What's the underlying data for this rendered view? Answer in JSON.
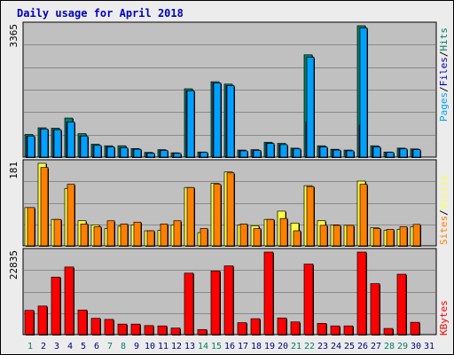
{
  "title": "Daily usage for April 2018",
  "colors": {
    "pages": "#00a0ff",
    "files": "#0000bb",
    "hits": "#008060",
    "sites": "#ff8000",
    "visits": "#ffff40",
    "kbytes": "#ff0000",
    "weekend_day": "#008060",
    "weekday_day": "#000080",
    "panel_bg": "#c0c0c0"
  },
  "chart_data": [
    {
      "type": "bar",
      "panel": "hits-files-pages",
      "max_label": "3365",
      "ylim": [
        0,
        3365
      ],
      "legend": [
        {
          "name": "Pages",
          "color": "#00a0ff"
        },
        {
          "name": "Files",
          "color": "#0000bb"
        },
        {
          "name": "Hits",
          "color": "#008060"
        }
      ],
      "categories": [
        "1",
        "2",
        "3",
        "4",
        "5",
        "6",
        "7",
        "8",
        "9",
        "10",
        "11",
        "12",
        "13",
        "14",
        "15",
        "16",
        "17",
        "18",
        "19",
        "20",
        "21",
        "22",
        "23",
        "24",
        "25",
        "26",
        "27",
        "28",
        "29",
        "30",
        "31"
      ],
      "series": [
        {
          "name": "Hits",
          "values": [
            580,
            750,
            740,
            1000,
            600,
            330,
            290,
            290,
            220,
            120,
            190,
            110,
            1750,
            130,
            1930,
            1870,
            180,
            190,
            380,
            350,
            230,
            2620,
            290,
            200,
            180,
            3365,
            290,
            130,
            230,
            210,
            0
          ]
        },
        {
          "name": "Files",
          "values": [
            540,
            720,
            700,
            900,
            540,
            300,
            260,
            240,
            200,
            100,
            170,
            95,
            1700,
            120,
            1900,
            1830,
            160,
            170,
            350,
            320,
            210,
            900,
            260,
            180,
            160,
            820,
            260,
            120,
            210,
            190,
            0
          ]
        },
        {
          "name": "Pages",
          "values": [
            540,
            720,
            700,
            900,
            540,
            300,
            260,
            240,
            200,
            100,
            170,
            95,
            1700,
            120,
            1900,
            1830,
            160,
            170,
            350,
            320,
            210,
            2560,
            260,
            180,
            160,
            3310,
            260,
            120,
            210,
            190,
            0
          ]
        }
      ]
    },
    {
      "type": "bar",
      "panel": "visits-sites",
      "max_label": "181",
      "ylim": [
        0,
        181
      ],
      "legend": [
        {
          "name": "Sites",
          "color": "#ff8000"
        },
        {
          "name": "Visits",
          "color": "#ffff40"
        }
      ],
      "categories": [
        "1",
        "2",
        "3",
        "4",
        "5",
        "6",
        "7",
        "8",
        "9",
        "10",
        "11",
        "12",
        "13",
        "14",
        "15",
        "16",
        "17",
        "18",
        "19",
        "20",
        "21",
        "22",
        "23",
        "24",
        "25",
        "26",
        "27",
        "28",
        "29",
        "30",
        "31"
      ],
      "series": [
        {
          "name": "Visits",
          "values": [
            84,
            181,
            58,
            126,
            55,
            46,
            38,
            43,
            46,
            33,
            34,
            46,
            128,
            29,
            137,
            162,
            46,
            44,
            58,
            76,
            50,
            132,
            55,
            46,
            45,
            142,
            40,
            34,
            36,
            42,
            0
          ]
        },
        {
          "name": "Sites",
          "values": [
            84,
            172,
            58,
            135,
            48,
            42,
            55,
            48,
            52,
            33,
            48,
            55,
            128,
            38,
            135,
            160,
            48,
            38,
            58,
            60,
            33,
            130,
            45,
            45,
            45,
            135,
            38,
            36,
            42,
            47,
            0
          ]
        }
      ]
    },
    {
      "type": "bar",
      "panel": "kbytes",
      "max_label": "22835",
      "ylim": [
        0,
        22835
      ],
      "legend": [
        {
          "name": "KBytes",
          "color": "#ff0000"
        }
      ],
      "categories": [
        "1",
        "2",
        "3",
        "4",
        "5",
        "6",
        "7",
        "8",
        "9",
        "10",
        "11",
        "12",
        "13",
        "14",
        "15",
        "16",
        "17",
        "18",
        "19",
        "20",
        "21",
        "22",
        "23",
        "24",
        "25",
        "26",
        "27",
        "28",
        "29",
        "30",
        "31"
      ],
      "series": [
        {
          "name": "KBytes",
          "values": [
            6700,
            7900,
            15900,
            18700,
            6800,
            4500,
            4200,
            2900,
            2900,
            2500,
            2400,
            1800,
            17000,
            1400,
            17600,
            19000,
            3300,
            4400,
            22835,
            4600,
            3500,
            19500,
            3100,
            2400,
            2400,
            22835,
            14100,
            1700,
            16700,
            3400,
            0
          ]
        }
      ]
    }
  ],
  "x_labels": [
    "1",
    "2",
    "3",
    "4",
    "5",
    "6",
    "7",
    "8",
    "9",
    "10",
    "11",
    "12",
    "13",
    "14",
    "15",
    "16",
    "17",
    "18",
    "19",
    "20",
    "21",
    "22",
    "23",
    "24",
    "25",
    "26",
    "27",
    "28",
    "29",
    "30",
    "31"
  ],
  "weekend_days": [
    "1",
    "7",
    "8",
    "14",
    "15",
    "21",
    "22",
    "28",
    "29"
  ]
}
